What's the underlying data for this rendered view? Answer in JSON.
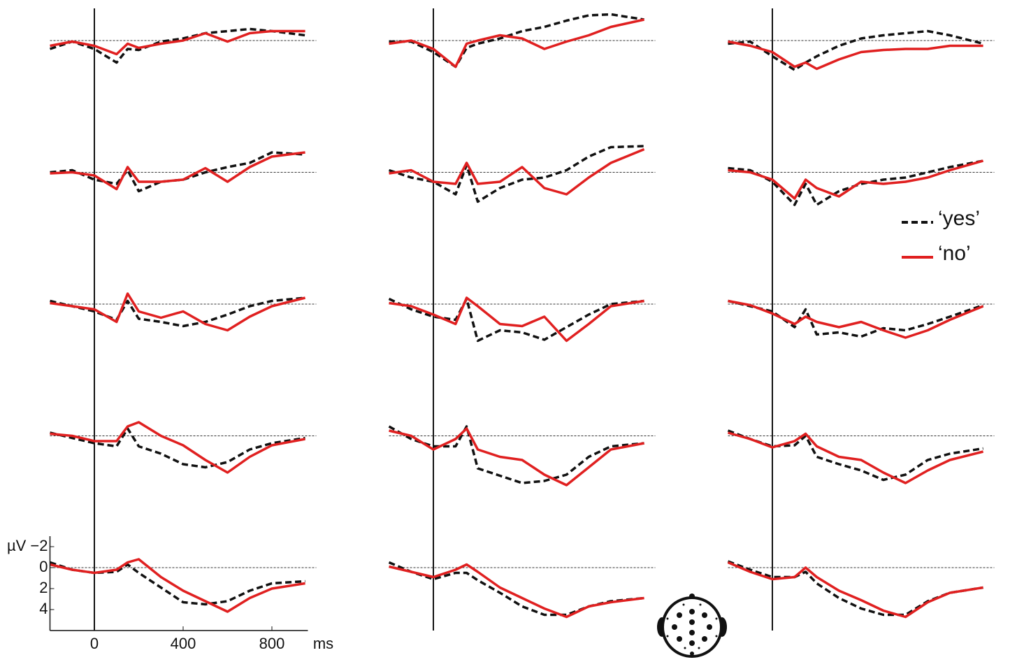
{
  "chart_data": {
    "type": "line",
    "x": [
      -200,
      -100,
      0,
      100,
      150,
      200,
      300,
      400,
      500,
      600,
      700,
      800,
      950
    ],
    "xlim": [
      -200,
      1000
    ],
    "xticks": [
      0,
      400,
      800
    ],
    "x_label": "ms",
    "ylim": [
      6,
      -3
    ],
    "yticks": [
      {
        "value": -2,
        "label": "−2"
      },
      0,
      2,
      4
    ],
    "y_label": "µV",
    "series": [
      {
        "name": "‘yes’",
        "color": "#111111",
        "dash": true
      },
      {
        "name": "‘no’",
        "color": "#e02020",
        "dash": false
      }
    ],
    "panels": [
      [
        [
          0.8,
          0.1,
          0.8,
          2.1,
          0.8,
          0.9,
          0.1,
          -0.2,
          -0.7,
          -0.9,
          -1.1,
          -0.9,
          -0.5
        ],
        [
          0.5,
          0.1,
          0.5,
          1.3,
          0.3,
          0.7,
          0.3,
          0,
          -0.7,
          0.1,
          -0.7,
          -0.9,
          -0.9
        ]
      ],
      [
        [
          0.1,
          0.1,
          1.1,
          2.5,
          0.7,
          0.3,
          -0.2,
          -0.9,
          -1.3,
          -1.9,
          -2.4,
          -2.5,
          -2.0
        ],
        [
          0.3,
          0,
          0.8,
          2.5,
          0.3,
          0,
          -0.5,
          -0.2,
          0.8,
          0.1,
          -0.5,
          -1.3,
          -2.0
        ]
      ],
      [
        [
          0.3,
          0.1,
          1.5,
          2.8,
          2.1,
          1.5,
          0.5,
          -0.2,
          -0.5,
          -0.7,
          -0.9,
          -0.5,
          0.3
        ],
        [
          0.1,
          0.5,
          1.1,
          2.5,
          2.1,
          2.7,
          1.8,
          1.1,
          0.9,
          0.8,
          0.8,
          0.5,
          0.5
        ]
      ],
      [
        [
          0,
          -0.2,
          0.7,
          1.1,
          -0.2,
          1.8,
          0.9,
          0.7,
          0,
          -0.5,
          -0.9,
          -1.9,
          -1.7
        ],
        [
          0.1,
          0,
          0.3,
          1.6,
          -0.5,
          0.9,
          0.9,
          0.7,
          -0.4,
          0.9,
          -0.5,
          -1.5,
          -1.9
        ]
      ],
      [
        [
          -0.2,
          0.5,
          0.9,
          2.1,
          -0.7,
          2.8,
          1.5,
          0.7,
          0.5,
          -0.2,
          -1.5,
          -2.4,
          -2.5
        ],
        [
          0.1,
          -0.2,
          0.9,
          1.1,
          -0.9,
          1.1,
          0.9,
          -0.5,
          1.5,
          2.1,
          0.5,
          -0.9,
          -2.2
        ]
      ],
      [
        [
          -0.4,
          -0.2,
          0.9,
          3.1,
          1.1,
          3.1,
          1.8,
          1.1,
          0.7,
          0.5,
          0,
          -0.5,
          -1.1
        ],
        [
          -0.2,
          0,
          0.7,
          2.5,
          0.7,
          1.5,
          2.3,
          0.9,
          1.1,
          0.9,
          0.5,
          -0.2,
          -1.1
        ]
      ],
      [
        [
          -0.3,
          0.2,
          0.7,
          1.5,
          -0.3,
          1.4,
          1.7,
          2.1,
          1.7,
          1.0,
          0.2,
          -0.3,
          -0.6
        ],
        [
          -0.1,
          0.2,
          0.5,
          1.7,
          -1.0,
          0.7,
          1.3,
          0.7,
          1.9,
          2.5,
          1.2,
          0.2,
          -0.6
        ]
      ],
      [
        [
          -0.5,
          0.5,
          1.2,
          1.5,
          -0.5,
          3.5,
          2.5,
          2.7,
          3.4,
          2.2,
          1.0,
          0,
          -0.3
        ],
        [
          -0.1,
          0.2,
          1.0,
          1.9,
          -0.6,
          0.2,
          1.9,
          2.1,
          1.2,
          3.5,
          1.9,
          0.2,
          -0.3
        ]
      ],
      [
        [
          -0.3,
          0.2,
          0.7,
          2.2,
          0.5,
          2.9,
          2.7,
          3.1,
          2.3,
          2.5,
          1.9,
          1.2,
          0.1
        ],
        [
          -0.3,
          0.1,
          0.9,
          1.9,
          1.2,
          1.7,
          2.2,
          1.7,
          2.5,
          3.2,
          2.5,
          1.5,
          0.2
        ]
      ],
      [
        [
          -0.3,
          0.2,
          0.7,
          1.0,
          -0.7,
          1.0,
          1.7,
          2.7,
          3.0,
          2.5,
          1.3,
          0.7,
          0.2
        ],
        [
          -0.2,
          0,
          0.5,
          0.5,
          -0.9,
          -1.3,
          0,
          0.9,
          2.3,
          3.5,
          2.0,
          0.9,
          0.3
        ]
      ],
      [
        [
          -0.9,
          0.3,
          1.0,
          1.0,
          -0.9,
          3.1,
          3.8,
          4.5,
          4.3,
          3.7,
          2.0,
          1.0,
          0.7
        ],
        [
          -0.5,
          0,
          1.3,
          0.3,
          -0.7,
          1.3,
          2.0,
          2.3,
          3.7,
          4.7,
          3.0,
          1.3,
          0.7
        ]
      ],
      [
        [
          -0.5,
          0.3,
          1.0,
          0.9,
          0,
          2.0,
          2.7,
          3.3,
          4.2,
          3.7,
          2.3,
          1.7,
          1.2
        ],
        [
          -0.3,
          0.3,
          1.1,
          0.5,
          -0.2,
          1.0,
          2.0,
          2.3,
          3.5,
          4.5,
          3.3,
          2.3,
          1.5
        ]
      ],
      [
        [
          -0.5,
          0.2,
          0.5,
          0.4,
          -0.3,
          0.5,
          1.9,
          3.3,
          3.5,
          3.2,
          2.2,
          1.5,
          1.3
        ],
        [
          -0.3,
          0.2,
          0.5,
          0.2,
          -0.5,
          -0.8,
          0.9,
          2.2,
          3.2,
          4.2,
          2.9,
          2.0,
          1.5
        ]
      ],
      [
        [
          -0.5,
          0.4,
          1.1,
          0.5,
          0.5,
          1.2,
          2.4,
          3.7,
          4.5,
          4.5,
          3.7,
          3.2,
          2.9
        ],
        [
          -0.1,
          0.4,
          0.9,
          0.2,
          -0.3,
          0.4,
          1.9,
          2.9,
          3.9,
          4.7,
          3.7,
          3.3,
          2.9
        ]
      ],
      [
        [
          -0.6,
          0.2,
          0.9,
          0.9,
          0.4,
          1.5,
          2.9,
          3.9,
          4.5,
          4.5,
          3.2,
          2.4,
          1.9
        ],
        [
          -0.5,
          0.4,
          1.1,
          0.9,
          0,
          0.9,
          2.2,
          3.1,
          4.1,
          4.7,
          3.3,
          2.4,
          1.9
        ]
      ]
    ]
  }
}
